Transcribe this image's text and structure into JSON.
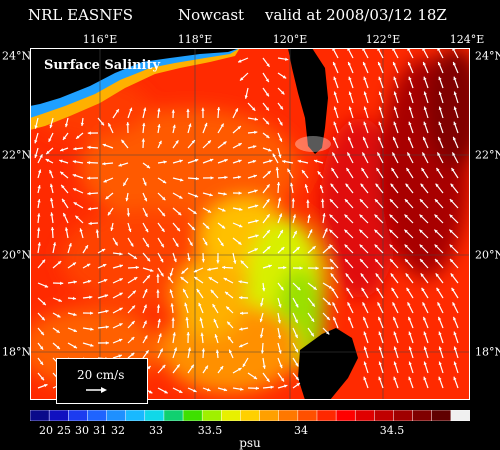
{
  "header": {
    "model": "NRL EASNFS",
    "product": "Nowcast",
    "valid": "valid at 2008/03/12 18Z"
  },
  "map": {
    "label": "Surface Salinity",
    "lon_labels": [
      "116°E",
      "118°E",
      "120°E",
      "122°E",
      "124°E"
    ],
    "lat_labels": [
      "24°N",
      "22°N",
      "20°N",
      "18°N"
    ],
    "land_color": "#000000",
    "vector_color": "#ffffff"
  },
  "vector_legend": {
    "text": "20 cm/s"
  },
  "colorbar": {
    "unit": "psu",
    "tick_labels": [
      "20",
      "25",
      "30",
      "31",
      "32",
      "33",
      "33.5",
      "34",
      "34.5"
    ],
    "colors": [
      "#0a0a8a",
      "#1010c0",
      "#1c3cf0",
      "#1f64ff",
      "#1e90ff",
      "#19b9ff",
      "#10d8e8",
      "#10d070",
      "#3ee000",
      "#a0f000",
      "#e8f000",
      "#ffd000",
      "#ffa000",
      "#ff7800",
      "#ff5000",
      "#ff2800",
      "#ff0000",
      "#e00000",
      "#c00000",
      "#a00000",
      "#800000",
      "#600000",
      "#f0f0f0"
    ]
  }
}
